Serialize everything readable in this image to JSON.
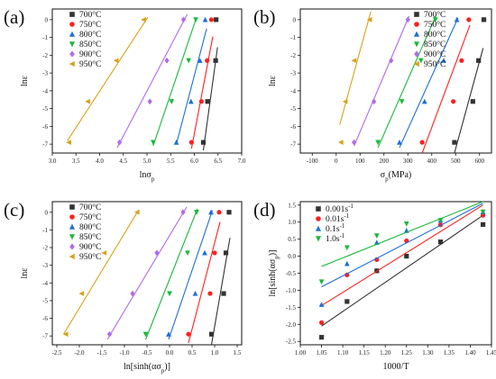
{
  "chart_data": [
    {
      "panel_label": "(a)",
      "type": "scatter",
      "xlabel": "lnσ",
      "xlabel_sub": "p",
      "ylabel": "lnε",
      "xlim": [
        3.0,
        7.0
      ],
      "ylim": [
        -7.5,
        0.6
      ],
      "xticks": [
        "3.0",
        "3.5",
        "4.0",
        "4.5",
        "5.0",
        "5.5",
        "6.0",
        "6.5",
        "7.0"
      ],
      "yticks": [
        "0",
        "-1",
        "-2",
        "-3",
        "-4",
        "-5",
        "-6",
        "-7"
      ],
      "legend_position": "top-left",
      "series": [
        {
          "name": "700°C",
          "color": "#333333",
          "marker": "square",
          "x": [
            6.46,
            6.45,
            6.28,
            6.19
          ],
          "y": [
            0,
            -2.3,
            -4.6,
            -6.9
          ],
          "fit": {
            "x": [
              6.19,
              6.49
            ],
            "y": [
              -7.35,
              -1.55
            ]
          }
        },
        {
          "name": "750°C",
          "color": "#ff2020",
          "marker": "circle",
          "x": [
            6.36,
            6.27,
            6.15,
            5.94
          ],
          "y": [
            0,
            -2.3,
            -4.6,
            -6.9
          ],
          "fit": {
            "x": [
              5.94,
              6.39
            ],
            "y": [
              -7.25,
              -0.95
            ]
          }
        },
        {
          "name": "800°C",
          "color": "#1f6fd6",
          "marker": "triangle-up",
          "x": [
            6.23,
            6.12,
            5.93,
            5.62
          ],
          "y": [
            0,
            -2.3,
            -4.6,
            -6.9
          ],
          "fit": {
            "x": [
              5.62,
              6.26
            ],
            "y": [
              -7.0,
              -0.5
            ]
          }
        },
        {
          "name": "850°C",
          "color": "#19b83a",
          "marker": "triangle-down",
          "x": [
            6.03,
            5.88,
            5.52,
            5.13
          ],
          "y": [
            0,
            -2.3,
            -4.6,
            -6.9
          ],
          "fit": {
            "x": [
              5.13,
              6.03
            ],
            "y": [
              -7.1,
              0.0
            ]
          }
        },
        {
          "name": "900°C",
          "color": "#b26ae8",
          "marker": "diamond",
          "x": [
            5.77,
            5.42,
            5.06,
            4.42
          ],
          "y": [
            0,
            -2.3,
            -4.6,
            -6.9
          ],
          "fit": {
            "x": [
              4.37,
              5.85
            ],
            "y": [
              -7.2,
              0.3
            ]
          }
        },
        {
          "name": "950°C",
          "color": "#d8a11b",
          "marker": "triangle-left",
          "x": [
            4.93,
            4.35,
            3.75,
            3.35
          ],
          "y": [
            0,
            -2.3,
            -4.6,
            -6.9
          ],
          "fit": {
            "x": [
              3.32,
              5.02
            ],
            "y": [
              -6.8,
              0.15
            ]
          }
        }
      ]
    },
    {
      "panel_label": "(b)",
      "type": "scatter",
      "xlabel": "σ",
      "xlabel_sub": "p",
      "xlabel_unit": "(MPa)",
      "ylabel": "lnε",
      "xlim": [
        -150,
        650
      ],
      "ylim": [
        -7.5,
        0.6
      ],
      "xticks": [
        "-100",
        "0",
        "100",
        "200",
        "300",
        "400",
        "500",
        "600"
      ],
      "yticks": [
        "0",
        "-1",
        "-2",
        "-3",
        "-4",
        "-5",
        "-6",
        "-7"
      ],
      "legend_position": "top-right",
      "series": [
        {
          "name": "700°C",
          "color": "#333333",
          "marker": "square",
          "x": [
            618,
            596,
            572,
            495
          ],
          "y": [
            0,
            -2.3,
            -4.6,
            -6.9
          ],
          "fit": {
            "x": [
              495,
              615
            ],
            "y": [
              -7.5,
              -1.6
            ]
          }
        },
        {
          "name": "750°C",
          "color": "#ff2020",
          "marker": "circle",
          "x": [
            555,
            525,
            490,
            360
          ],
          "y": [
            0,
            -2.3,
            -4.6,
            -6.9
          ],
          "fit": {
            "x": [
              360,
              560
            ],
            "y": [
              -7.5,
              -0.3
            ]
          }
        },
        {
          "name": "800°C",
          "color": "#1f6fd6",
          "marker": "triangle-up",
          "x": [
            505,
            450,
            370,
            265
          ],
          "y": [
            0,
            -2.3,
            -4.6,
            -6.9
          ],
          "fit": {
            "x": [
              265,
              510
            ],
            "y": [
              -7.2,
              0.1
            ]
          }
        },
        {
          "name": "850°C",
          "color": "#19b83a",
          "marker": "triangle-down",
          "x": [
            415,
            355,
            275,
            175
          ],
          "y": [
            0,
            -2.3,
            -4.6,
            -6.9
          ],
          "fit": {
            "x": [
              175,
              418
            ],
            "y": [
              -7.2,
              0.25
            ]
          }
        },
        {
          "name": "900°C",
          "color": "#b26ae8",
          "marker": "diamond",
          "x": [
            300,
            230,
            158,
            75
          ],
          "y": [
            0,
            -2.3,
            -4.6,
            -6.9
          ],
          "fit": {
            "x": [
              75,
              305
            ],
            "y": [
              -7.1,
              0.2
            ]
          }
        },
        {
          "name": "950°C",
          "color": "#d8a11b",
          "marker": "triangle-left",
          "x": [
            140,
            75,
            38,
            20
          ],
          "y": [
            0,
            -2.3,
            -4.6,
            -6.9
          ],
          "fit": {
            "x": [
              15,
              145
            ],
            "y": [
              -5.9,
              0.45
            ]
          }
        }
      ]
    },
    {
      "panel_label": "(c)",
      "type": "scatter",
      "xlabel": "ln[sinh(ασ",
      "xlabel_sub": "p",
      "xlabel_end": ")]",
      "ylabel": "lnε",
      "xlim": [
        -2.6,
        1.6
      ],
      "ylim": [
        -7.5,
        0.6
      ],
      "xticks": [
        "-2.5",
        "-2.0",
        "-1.5",
        "-1.0",
        "-0.5",
        "0.0",
        "0.5",
        "1.0",
        "1.5"
      ],
      "yticks": [
        "0",
        "-1",
        "-2",
        "-3",
        "-4",
        "-5",
        "-6",
        "-7"
      ],
      "legend_position": "top-left",
      "series": [
        {
          "name": "700°C",
          "color": "#333333",
          "marker": "square",
          "x": [
            1.32,
            1.25,
            1.2,
            0.93
          ],
          "y": [
            0,
            -2.3,
            -4.6,
            -6.9
          ],
          "fit": {
            "x": [
              0.93,
              1.34
            ],
            "y": [
              -7.5,
              -1.45
            ]
          }
        },
        {
          "name": "750°C",
          "color": "#ff2020",
          "marker": "circle",
          "x": [
            1.1,
            1.0,
            0.9,
            0.42
          ],
          "y": [
            0,
            -2.3,
            -4.6,
            -6.9
          ],
          "fit": {
            "x": [
              0.42,
              1.12
            ],
            "y": [
              -7.4,
              -0.55
            ]
          }
        },
        {
          "name": "800°C",
          "color": "#1f6fd6",
          "marker": "triangle-up",
          "x": [
            0.92,
            0.78,
            0.57,
            -0.02
          ],
          "y": [
            0,
            -2.3,
            -4.6,
            -6.9
          ],
          "fit": {
            "x": [
              -0.02,
              0.95
            ],
            "y": [
              -7.2,
              0.1
            ]
          }
        },
        {
          "name": "850°C",
          "color": "#19b83a",
          "marker": "triangle-down",
          "x": [
            0.6,
            0.4,
            0.0,
            -0.53
          ],
          "y": [
            0,
            -2.3,
            -4.6,
            -6.9
          ],
          "fit": {
            "x": [
              -0.53,
              0.62
            ],
            "y": [
              -7.2,
              0.2
            ]
          }
        },
        {
          "name": "900°C",
          "color": "#b26ae8",
          "marker": "diamond",
          "x": [
            0.3,
            -0.28,
            -0.82,
            -1.33
          ],
          "y": [
            0,
            -2.3,
            -4.6,
            -6.9
          ],
          "fit": {
            "x": [
              -1.38,
              0.38
            ],
            "y": [
              -7.2,
              0.3
            ]
          }
        },
        {
          "name": "950°C",
          "color": "#d8a11b",
          "marker": "triangle-left",
          "x": [
            -0.72,
            -1.45,
            -1.95,
            -2.3
          ],
          "y": [
            0,
            -2.3,
            -4.6,
            -6.9
          ],
          "fit": {
            "x": [
              -2.35,
              -0.68
            ],
            "y": [
              -6.9,
              0.15
            ]
          }
        }
      ]
    },
    {
      "panel_label": "(d)",
      "type": "scatter",
      "xlabel": "1000/T",
      "ylabel": "ln[sinh(ασ",
      "ylabel_sub": "p",
      "ylabel_end": ")]",
      "xlim": [
        1.0,
        1.45
      ],
      "ylim": [
        -2.6,
        1.6
      ],
      "xticks": [
        "1.00",
        "1.05",
        "1.10",
        "1.15",
        "1.20",
        "1.25",
        "1.30",
        "1.35",
        "1.40",
        "1.45"
      ],
      "yticks": [
        "-2.5",
        "-2.0",
        "-1.5",
        "-1.0",
        "-0.5",
        "0.0",
        "0.5",
        "1.0",
        "1.5"
      ],
      "legend_position": "top-left",
      "series": [
        {
          "name": "0.001s",
          "unit_sup": "-1",
          "color": "#333333",
          "marker": "square",
          "x": [
            1.05,
            1.11,
            1.18,
            1.25,
            1.33,
            1.43
          ],
          "y": [
            -2.38,
            -1.33,
            -0.43,
            0.0,
            0.42,
            0.93
          ],
          "fit": {
            "x": [
              1.05,
              1.43
            ],
            "y": [
              -2.05,
              1.2
            ]
          }
        },
        {
          "name": "0.01s",
          "unit_sup": "-1",
          "color": "#ff2020",
          "marker": "circle",
          "x": [
            1.05,
            1.11,
            1.18,
            1.25,
            1.33,
            1.43
          ],
          "y": [
            -1.95,
            -0.55,
            -0.1,
            0.45,
            0.92,
            1.2
          ],
          "fit": {
            "x": [
              1.05,
              1.43
            ],
            "y": [
              -1.45,
              1.5
            ]
          }
        },
        {
          "name": "0.1s",
          "unit_sup": "-1",
          "color": "#1f6fd6",
          "marker": "triangle-up",
          "x": [
            1.05,
            1.11,
            1.18,
            1.25,
            1.33,
            1.43
          ],
          "y": [
            -1.42,
            -0.22,
            0.4,
            0.75,
            1.05,
            1.3
          ],
          "fit": {
            "x": [
              1.05,
              1.43
            ],
            "y": [
              -0.9,
              1.55
            ]
          }
        },
        {
          "name": "1.0s",
          "unit_sup": "-1",
          "color": "#19b83a",
          "marker": "triangle-down",
          "x": [
            1.05,
            1.11,
            1.18,
            1.25,
            1.33,
            1.43
          ],
          "y": [
            -0.75,
            0.25,
            0.6,
            0.95,
            1.05,
            1.3
          ],
          "fit": {
            "x": [
              1.05,
              1.43
            ],
            "y": [
              -0.3,
              1.6
            ]
          }
        }
      ]
    }
  ]
}
